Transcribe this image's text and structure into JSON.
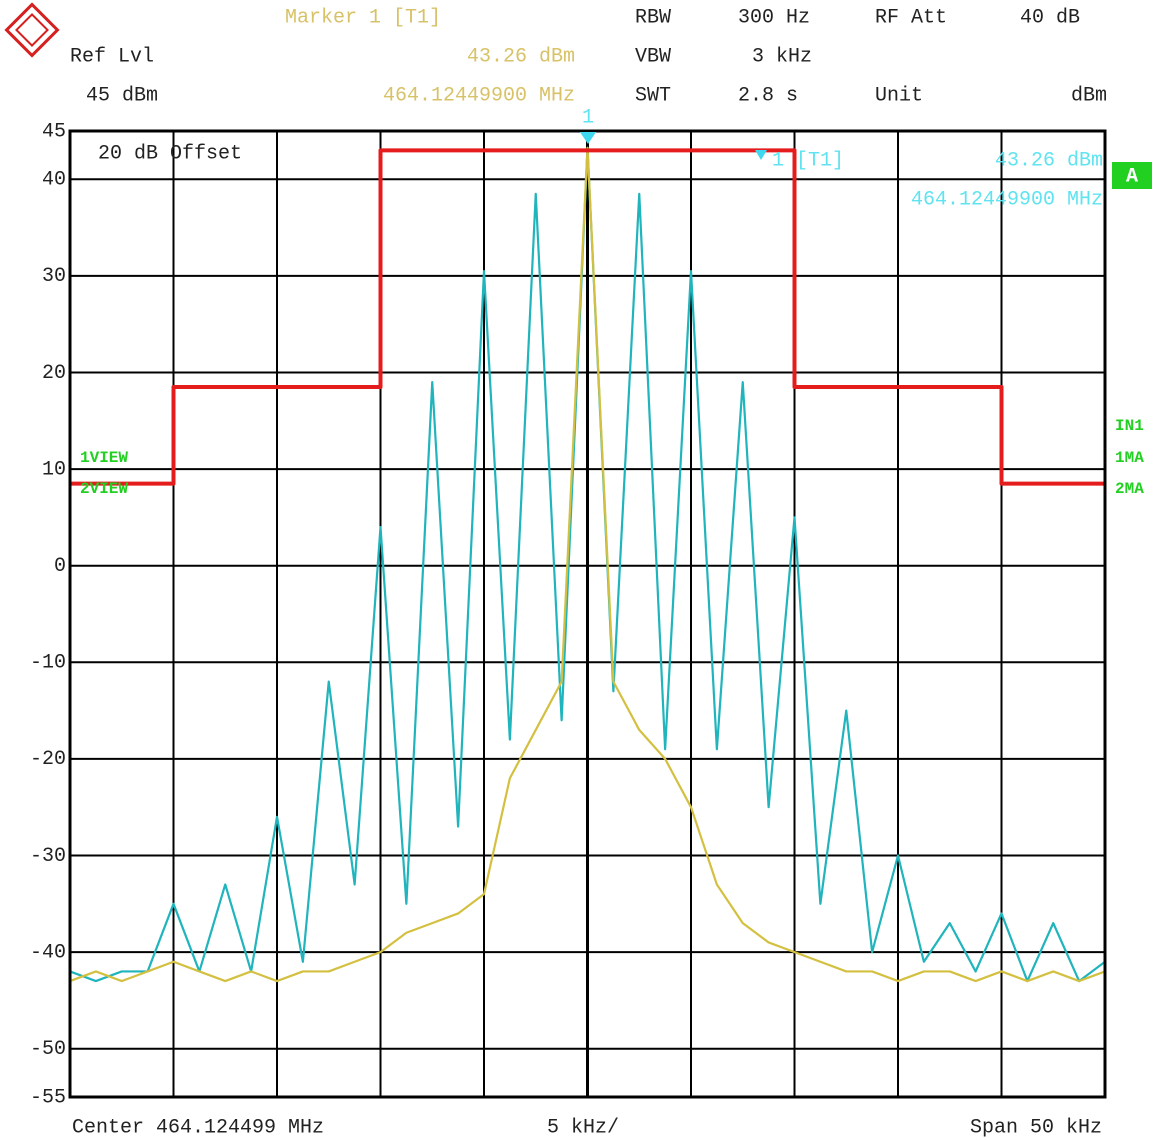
{
  "chart_data": {
    "type": "line",
    "header": {
      "marker_title": "Marker 1 [T1]",
      "marker_level": "43.26 dBm",
      "marker_freq": "464.12449900 MHz",
      "ref_lvl_label": "Ref Lvl",
      "ref_lvl": "45 dBm",
      "rbw_label": "RBW",
      "rbw": "300 Hz",
      "vbw_label": "VBW",
      "vbw": "3 kHz",
      "swt_label": "SWT",
      "swt": "2.8 s",
      "rf_att_label": "RF Att",
      "rf_att": "40 dB",
      "unit_label": "Unit",
      "unit": "dBm"
    },
    "annotations": {
      "offset": "20 dB Offset",
      "marker_number": "1",
      "marker_tag": "1 [T1]",
      "marker_level": "43.26 dBm",
      "marker_freq": "464.12449900 MHz",
      "trace_box": "A",
      "right_labels": [
        "IN1",
        "1MA",
        "2MA"
      ],
      "left_labels": [
        "1VIEW",
        "2VIEW"
      ]
    },
    "footer": {
      "center": "Center 464.124499 MHz",
      "per_div": "5 kHz/",
      "span": "Span 50 kHz"
    },
    "xlim": [
      -25,
      25
    ],
    "ylim": [
      -55,
      45
    ],
    "yticks": [
      45,
      40,
      30,
      20,
      10,
      0,
      -10,
      -20,
      -30,
      -40,
      -50,
      -55
    ],
    "grid": true,
    "series": [
      {
        "color": "#20b4bc",
        "x": [
          -25,
          -23.75,
          -22.5,
          -21.25,
          -20,
          -18.75,
          -17.5,
          -16.25,
          -15,
          -13.75,
          -12.5,
          -11.25,
          -10,
          -8.75,
          -7.5,
          -6.25,
          -5,
          -3.75,
          -2.5,
          -1.25,
          0,
          1.25,
          2.5,
          3.75,
          5,
          6.25,
          7.5,
          8.75,
          10,
          11.25,
          12.5,
          13.75,
          15,
          16.25,
          17.5,
          18.75,
          20,
          21.25,
          22.5,
          23.75,
          25
        ],
        "values": [
          -42,
          -43,
          -42,
          -42,
          -35,
          -42,
          -33,
          -42,
          -26,
          -41,
          -12,
          -33,
          4,
          -35,
          19,
          -27,
          30.5,
          -18,
          38.5,
          -16,
          43.26,
          -13,
          38.5,
          -19,
          30.5,
          -19,
          19,
          -25,
          5,
          -35,
          -15,
          -40,
          -30,
          -41,
          -37,
          -42,
          -36,
          -43,
          -37,
          -43,
          -41
        ]
      },
      {
        "color": "#d4c040",
        "x": [
          -25,
          -23.75,
          -22.5,
          -21.25,
          -20,
          -18.75,
          -17.5,
          -16.25,
          -15,
          -13.75,
          -12.5,
          -11.25,
          -10,
          -8.75,
          -7.5,
          -6.25,
          -5,
          -3.75,
          -2.5,
          -1.25,
          0,
          1.25,
          2.5,
          3.75,
          5,
          6.25,
          7.5,
          8.75,
          10,
          11.25,
          12.5,
          13.75,
          15,
          16.25,
          17.5,
          18.75,
          20,
          21.25,
          22.5,
          23.75,
          25
        ],
        "values": [
          -43,
          -42,
          -43,
          -42,
          -41,
          -42,
          -43,
          -42,
          -43,
          -42,
          -42,
          -41,
          -40,
          -38,
          -37,
          -36,
          -34,
          -22,
          -17,
          -12,
          43.26,
          -12,
          -17,
          -20,
          -25,
          -33,
          -37,
          -39,
          -40,
          -41,
          -42,
          -42,
          -43,
          -42,
          -42,
          -43,
          -42,
          -43,
          -42,
          -43,
          -42
        ]
      },
      {
        "color": "#e41c1c",
        "x": [
          -25,
          -20,
          -20,
          -10,
          -10,
          10,
          10,
          20,
          20,
          25
        ],
        "values": [
          8.5,
          8.5,
          18.5,
          18.5,
          43,
          43,
          18.5,
          18.5,
          8.5,
          8.5
        ]
      }
    ]
  }
}
